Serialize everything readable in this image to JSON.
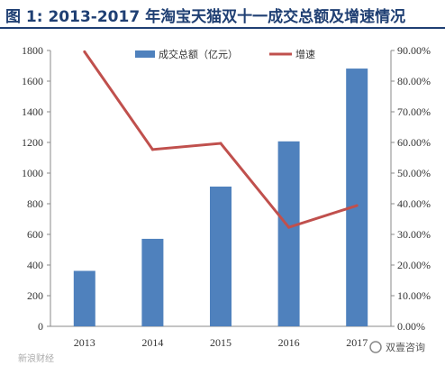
{
  "title": "图  1: 2013-2017 年淘宝天猫双十一成交总额及增速情况",
  "watermark": "新浪财经",
  "brand": "双壹咨询",
  "colors": {
    "bar": "#4f81bd",
    "line": "#c0504d",
    "title": "#1f3f73"
  },
  "chart_data": {
    "type": "bar",
    "categories": [
      "2013",
      "2014",
      "2015",
      "2016",
      "2017"
    ],
    "series": [
      {
        "name": "成交总额（亿元）",
        "type": "bar",
        "axis": "left",
        "values": [
          362,
          571,
          912,
          1207,
          1682
        ]
      },
      {
        "name": "增速",
        "type": "line",
        "axis": "right",
        "values": [
          89.6,
          57.7,
          59.7,
          32.3,
          39.4
        ]
      }
    ],
    "y_left": {
      "ylim": [
        0,
        1800
      ],
      "ticks": [
        "0",
        "200",
        "400",
        "600",
        "800",
        "1000",
        "1200",
        "1400",
        "1600",
        "1800"
      ]
    },
    "y_right": {
      "ylim": [
        0,
        90
      ],
      "ticks": [
        "0.00%",
        "10.00%",
        "20.00%",
        "30.00%",
        "40.00%",
        "50.00%",
        "60.00%",
        "70.00%",
        "80.00%",
        "90.00%"
      ]
    },
    "legend": "top-center",
    "grid": false
  }
}
